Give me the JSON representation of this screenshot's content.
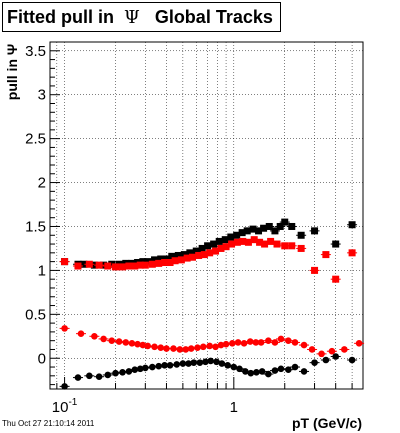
{
  "header": {
    "title_prefix": "Fitted pull in",
    "title_symbol": "Ψ",
    "title_suffix": "Global Tracks"
  },
  "footer": {
    "timestamp": "Thu Oct 27 21:10:14 2011"
  },
  "chart_data": {
    "type": "scatter",
    "title": "Fitted pull in Ψ   Global Tracks",
    "xlabel": "pT (GeV/c)",
    "ylabel": "pull in Ψ",
    "x_scale": "log",
    "xlim": [
      0.082,
      5.8
    ],
    "ylim": [
      -0.35,
      3.6
    ],
    "x_tick_labels": [
      {
        "value": 0.1,
        "base": "10",
        "exp": "-1"
      },
      {
        "value": 1,
        "base": "1",
        "exp": ""
      }
    ],
    "y_ticks": [
      0,
      0.5,
      1,
      1.5,
      2,
      2.5,
      3,
      3.5
    ],
    "y_tick_labels": [
      "0",
      "0.5",
      "1",
      "1.5",
      "2",
      "2.5",
      "3",
      "3.5"
    ],
    "grid": true,
    "series": [
      {
        "marker": "square",
        "color": "#000000",
        "x": [
          0.1,
          0.12,
          0.13,
          0.15,
          0.17,
          0.19,
          0.21,
          0.23,
          0.25,
          0.27,
          0.29,
          0.31,
          0.34,
          0.37,
          0.4,
          0.43,
          0.47,
          0.51,
          0.55,
          0.6,
          0.65,
          0.7,
          0.76,
          0.82,
          0.89,
          0.96,
          1.04,
          1.12,
          1.2,
          1.3,
          1.4,
          1.5,
          1.62,
          1.75,
          1.88,
          2.0,
          2.2,
          2.5,
          3.0,
          4.0,
          5.0
        ],
        "y": [
          1.1,
          1.07,
          1.07,
          1.06,
          1.06,
          1.07,
          1.07,
          1.08,
          1.08,
          1.09,
          1.1,
          1.1,
          1.12,
          1.13,
          1.13,
          1.16,
          1.17,
          1.18,
          1.2,
          1.22,
          1.25,
          1.28,
          1.3,
          1.33,
          1.35,
          1.38,
          1.4,
          1.43,
          1.45,
          1.47,
          1.45,
          1.48,
          1.5,
          1.45,
          1.5,
          1.55,
          1.5,
          1.4,
          1.45,
          1.3,
          1.52
        ]
      },
      {
        "marker": "square",
        "color": "#ff0000",
        "x": [
          0.1,
          0.12,
          0.14,
          0.16,
          0.18,
          0.2,
          0.22,
          0.24,
          0.26,
          0.28,
          0.3,
          0.33,
          0.36,
          0.39,
          0.42,
          0.45,
          0.49,
          0.53,
          0.57,
          0.62,
          0.67,
          0.72,
          0.78,
          0.84,
          0.9,
          0.97,
          1.05,
          1.13,
          1.22,
          1.32,
          1.42,
          1.52,
          1.65,
          1.8,
          2.0,
          2.2,
          2.5,
          3.0,
          3.5,
          4.0,
          5.0
        ],
        "y": [
          1.1,
          1.05,
          1.07,
          1.06,
          1.05,
          1.04,
          1.04,
          1.05,
          1.05,
          1.06,
          1.06,
          1.07,
          1.08,
          1.09,
          1.09,
          1.11,
          1.12,
          1.14,
          1.15,
          1.17,
          1.18,
          1.2,
          1.22,
          1.25,
          1.27,
          1.3,
          1.32,
          1.33,
          1.32,
          1.35,
          1.32,
          1.3,
          1.33,
          1.3,
          1.28,
          1.28,
          1.25,
          1.0,
          1.18,
          0.9,
          1.2
        ]
      },
      {
        "marker": "circle",
        "color": "#ff0000",
        "x": [
          0.1,
          0.125,
          0.15,
          0.17,
          0.19,
          0.21,
          0.23,
          0.25,
          0.27,
          0.29,
          0.31,
          0.34,
          0.37,
          0.4,
          0.44,
          0.48,
          0.52,
          0.56,
          0.61,
          0.66,
          0.72,
          0.78,
          0.84,
          0.9,
          0.98,
          1.06,
          1.15,
          1.25,
          1.35,
          1.45,
          1.6,
          1.75,
          1.9,
          2.1,
          2.3,
          2.6,
          2.9,
          3.3,
          3.8,
          4.5,
          5.5
        ],
        "y": [
          0.34,
          0.28,
          0.25,
          0.22,
          0.2,
          0.19,
          0.18,
          0.17,
          0.16,
          0.15,
          0.14,
          0.13,
          0.12,
          0.11,
          0.11,
          0.1,
          0.1,
          0.11,
          0.12,
          0.13,
          0.14,
          0.13,
          0.15,
          0.16,
          0.17,
          0.18,
          0.17,
          0.19,
          0.18,
          0.18,
          0.2,
          0.18,
          0.22,
          0.2,
          0.18,
          0.15,
          0.1,
          0.05,
          0.08,
          0.1,
          0.17
        ]
      },
      {
        "marker": "circle",
        "color": "#000000",
        "x": [
          0.1,
          0.12,
          0.14,
          0.16,
          0.18,
          0.2,
          0.22,
          0.24,
          0.26,
          0.28,
          0.3,
          0.33,
          0.36,
          0.39,
          0.42,
          0.46,
          0.5,
          0.54,
          0.58,
          0.63,
          0.68,
          0.73,
          0.79,
          0.85,
          0.92,
          1.0,
          1.08,
          1.17,
          1.26,
          1.36,
          1.47,
          1.6,
          1.75,
          1.9,
          2.1,
          2.3,
          2.6,
          3.0,
          3.5,
          4.0,
          5.0
        ],
        "y": [
          -0.32,
          -0.22,
          -0.2,
          -0.21,
          -0.19,
          -0.17,
          -0.16,
          -0.15,
          -0.13,
          -0.12,
          -0.11,
          -0.1,
          -0.09,
          -0.08,
          -0.08,
          -0.07,
          -0.06,
          -0.06,
          -0.05,
          -0.05,
          -0.04,
          -0.03,
          -0.04,
          -0.06,
          -0.08,
          -0.1,
          -0.12,
          -0.15,
          -0.17,
          -0.16,
          -0.15,
          -0.18,
          -0.14,
          -0.12,
          -0.13,
          -0.1,
          -0.15,
          -0.05,
          -0.02,
          0.02,
          -0.02
        ]
      }
    ]
  }
}
